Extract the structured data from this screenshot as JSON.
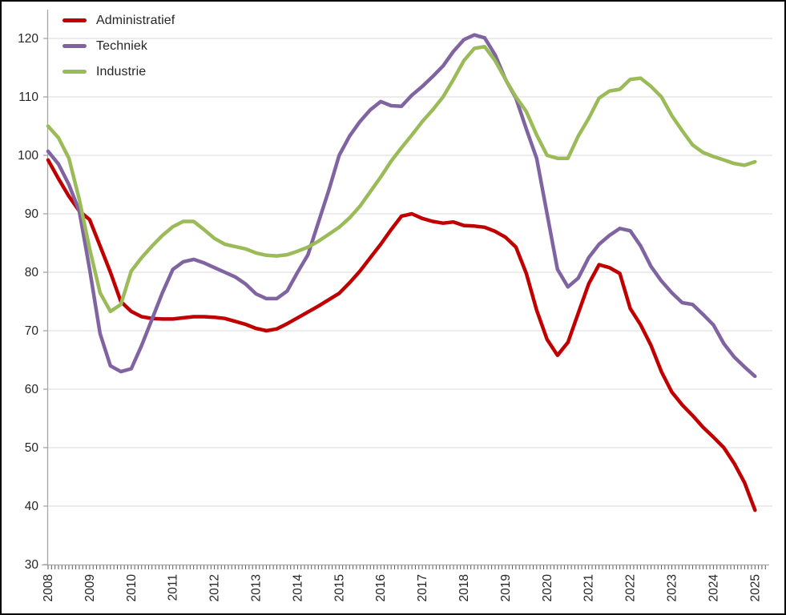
{
  "chart_data": {
    "type": "line",
    "title": "",
    "xlabel": "",
    "ylabel": "",
    "x_start_year": 2008,
    "x_end_year": 2025,
    "points_per_year": 4,
    "x_tick_labels": [
      "2008",
      "2009",
      "2010",
      "2011",
      "2012",
      "2013",
      "2014",
      "2015",
      "2016",
      "2017",
      "2018",
      "2019",
      "2020",
      "2021",
      "2022",
      "2023",
      "2024",
      "2025"
    ],
    "y_ticks": [
      30,
      40,
      50,
      60,
      70,
      80,
      90,
      100,
      110,
      120
    ],
    "ylim": [
      30,
      125
    ],
    "grid": true,
    "legend_position": "top-left",
    "series": [
      {
        "name": "Administratief",
        "color": "#c00000",
        "values": [
          99.2,
          96.0,
          93.0,
          90.5,
          89.0,
          84.5,
          80.0,
          75.0,
          73.3,
          72.4,
          72.1,
          72.0,
          72.0,
          72.2,
          72.4,
          72.4,
          72.3,
          72.1,
          71.6,
          71.1,
          70.4,
          70.0,
          70.3,
          71.2,
          72.2,
          73.2,
          74.2,
          75.3,
          76.4,
          78.2,
          80.2,
          82.5,
          84.8,
          87.3,
          89.6,
          90.0,
          89.2,
          88.7,
          88.4,
          88.6,
          88.0,
          87.9,
          87.7,
          87.0,
          86.0,
          84.3,
          79.8,
          73.5,
          68.5,
          65.8,
          68.0,
          73.0,
          78.0,
          81.3,
          80.8,
          79.8,
          73.8,
          71.0,
          67.5,
          63.0,
          59.5,
          57.3,
          55.5,
          53.5,
          51.8,
          50.0,
          47.3,
          44.0,
          39.3
        ]
      },
      {
        "name": "Techniek",
        "color": "#8064a2",
        "values": [
          100.7,
          98.5,
          95.0,
          90.5,
          80.5,
          69.5,
          64.0,
          63.0,
          63.5,
          67.5,
          72.0,
          76.5,
          80.5,
          81.8,
          82.2,
          81.6,
          80.8,
          80.0,
          79.2,
          78.0,
          76.3,
          75.5,
          75.5,
          76.8,
          80.0,
          83.0,
          88.5,
          94.0,
          100.0,
          103.3,
          105.8,
          107.8,
          109.2,
          108.5,
          108.4,
          110.3,
          111.8,
          113.5,
          115.3,
          117.8,
          119.8,
          120.6,
          120.1,
          117.2,
          113.0,
          109.8,
          104.5,
          99.5,
          90.0,
          80.5,
          77.5,
          79.0,
          82.5,
          84.8,
          86.3,
          87.5,
          87.1,
          84.5,
          81.0,
          78.5,
          76.5,
          74.8,
          74.5,
          72.8,
          71.0,
          67.8,
          65.5,
          63.8,
          62.2
        ]
      },
      {
        "name": "Industrie",
        "color": "#9bbb59",
        "values": [
          105.0,
          103.0,
          99.5,
          92.5,
          84.0,
          76.5,
          73.3,
          74.5,
          80.2,
          82.5,
          84.5,
          86.3,
          87.8,
          88.7,
          88.7,
          87.3,
          85.8,
          84.8,
          84.4,
          84.0,
          83.3,
          82.9,
          82.8,
          83.0,
          83.6,
          84.3,
          85.3,
          86.5,
          87.7,
          89.3,
          91.3,
          93.8,
          96.3,
          99.0,
          101.3,
          103.5,
          105.8,
          107.8,
          110.0,
          113.0,
          116.2,
          118.3,
          118.6,
          116.2,
          113.0,
          110.0,
          107.5,
          103.5,
          100.0,
          99.5,
          99.5,
          103.3,
          106.3,
          109.8,
          111.0,
          111.3,
          113.0,
          113.2,
          111.8,
          110.0,
          106.8,
          104.2,
          101.8,
          100.5,
          99.8,
          99.2,
          98.6,
          98.3,
          98.9
        ]
      }
    ],
    "style": {
      "gridline_color": "#d9d9d9",
      "axis_color": "#a6a6a6",
      "tick_color": "#595959",
      "tick_label_color": "#262626",
      "line_width": 4.5
    }
  },
  "legend": {
    "items": [
      {
        "label": "Administratief"
      },
      {
        "label": "Techniek"
      },
      {
        "label": "Industrie"
      }
    ]
  }
}
